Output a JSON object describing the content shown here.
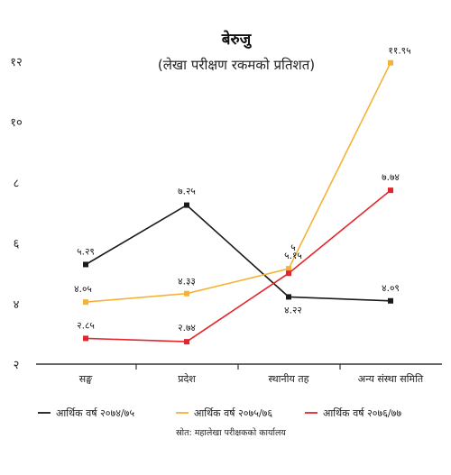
{
  "chart_data": {
    "type": "line",
    "title": "बेरुजु",
    "subtitle": "(लेखा परीक्षण रकमको प्रतिशत)",
    "categories": [
      "सङ्घ",
      "प्रदेश",
      "स्थानीय तह",
      "अन्य संस्था समिति"
    ],
    "ylim": [
      2,
      12
    ],
    "yticks": [
      2,
      4,
      6,
      8,
      10,
      12
    ],
    "ytick_labels": [
      "२",
      "४",
      "६",
      "८",
      "१०",
      "१२"
    ],
    "grid": false,
    "legend_position": "bottom",
    "source": "स्रोत: महालेखा परीक्षकको कार्यालय",
    "series": [
      {
        "name": "आर्थिक वर्ष २०७४/७५",
        "color": "#1a1a1a",
        "values": [
          5.29,
          7.25,
          4.22,
          4.09
        ],
        "labels": [
          "५.२९",
          "७.२५",
          "४.२२",
          "४.०९"
        ]
      },
      {
        "name": "आर्थिक वर्ष २०७५/७६",
        "color": "#f5b335",
        "values": [
          4.05,
          4.33,
          5.15,
          11.95
        ],
        "labels": [
          "४.०५",
          "४.३३",
          "५.१५",
          "११.९५"
        ]
      },
      {
        "name": "आर्थिक वर्ष २०७६/७७",
        "color": "#e3262b",
        "values": [
          2.85,
          2.74,
          5,
          7.74
        ],
        "labels": [
          "२.८५",
          "२.७४",
          "५",
          "७.७४"
        ]
      }
    ]
  }
}
